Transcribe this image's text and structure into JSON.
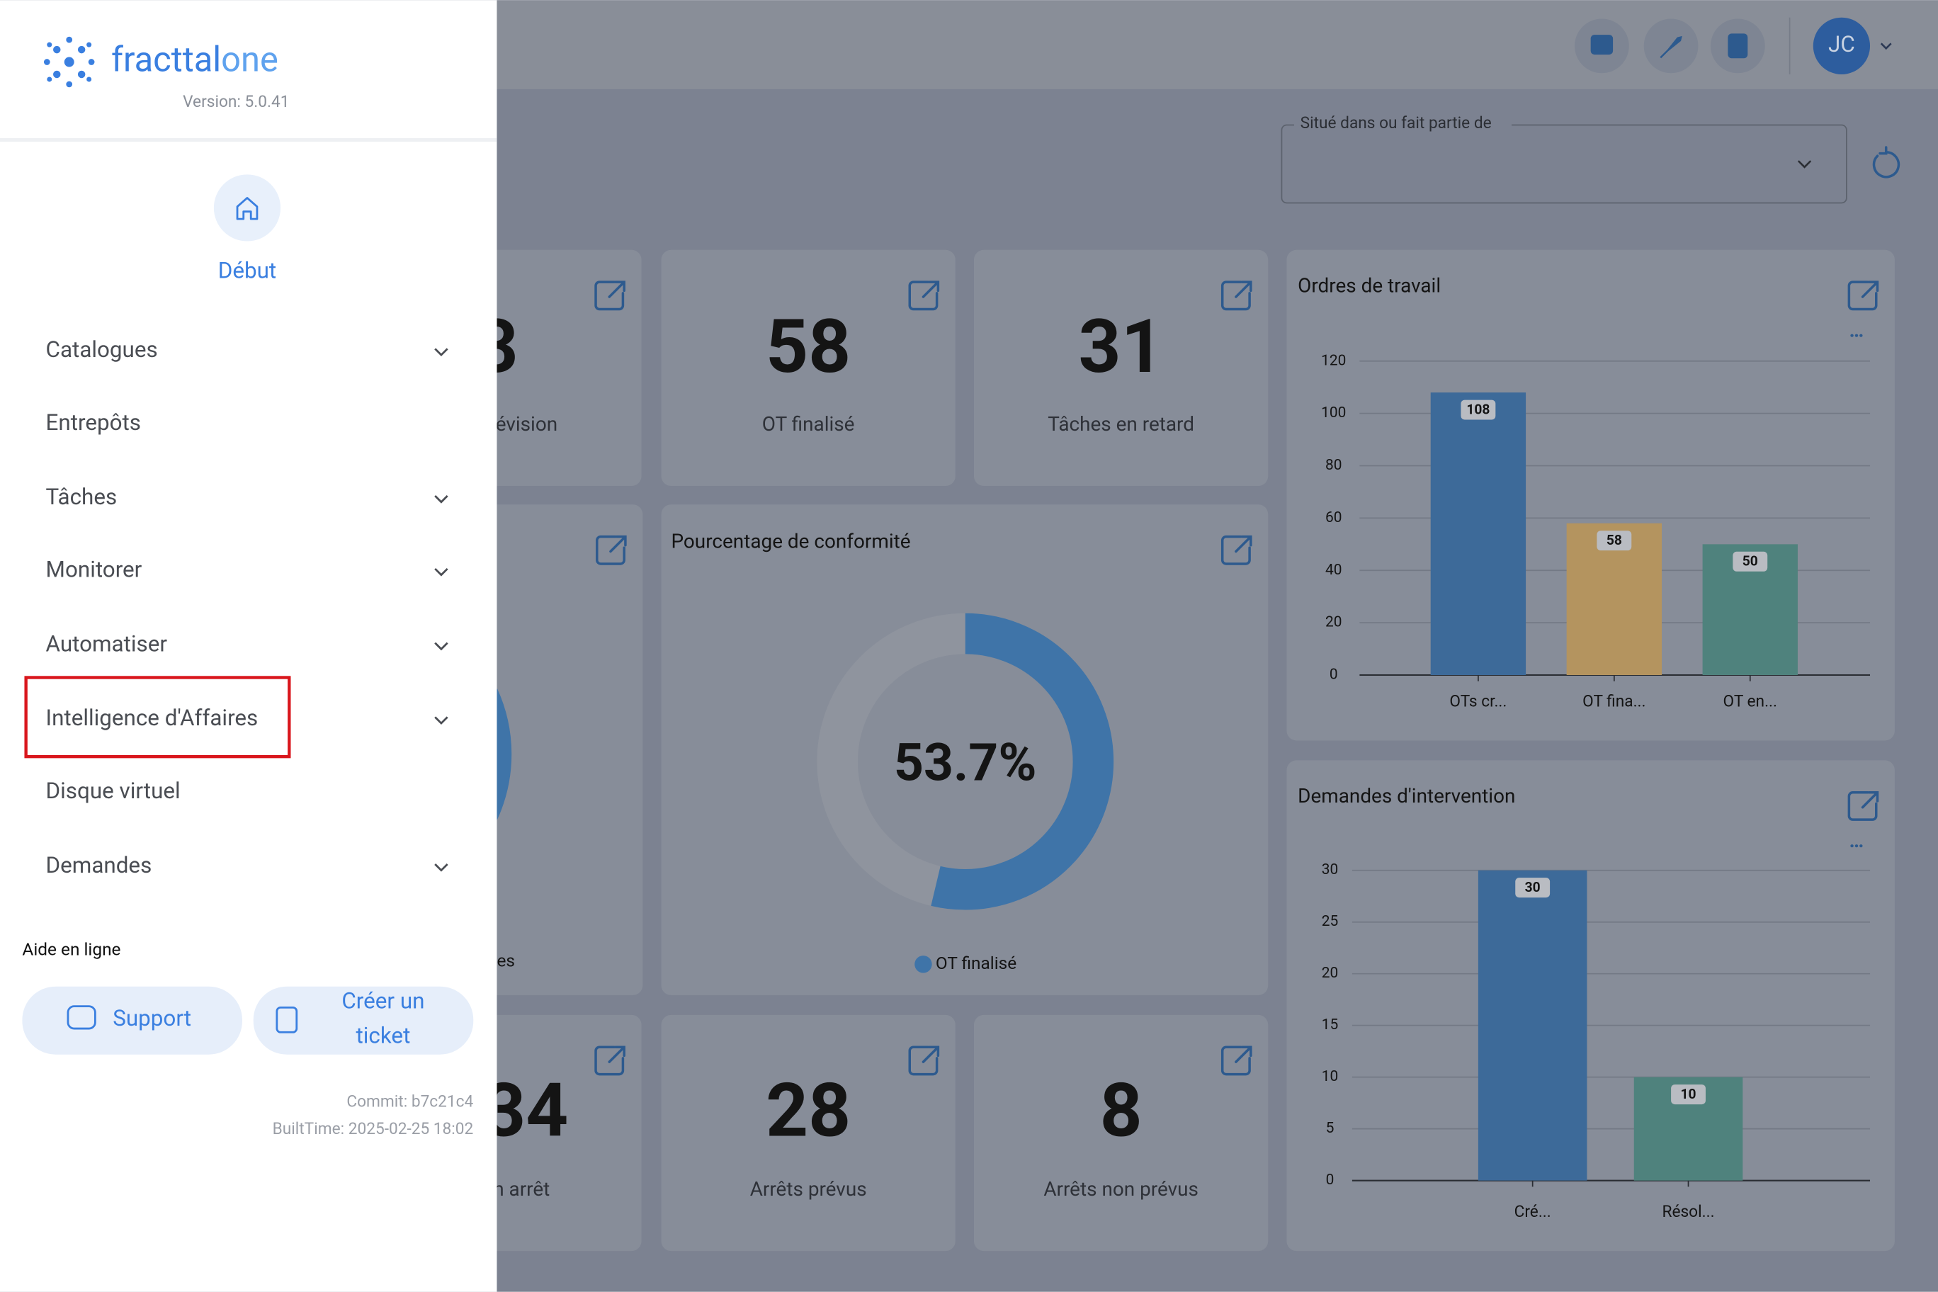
{
  "sidebar": {
    "brand": [
      "fracttal",
      "one"
    ],
    "version": "Version: 5.0.41",
    "home": "Début",
    "menu": [
      {
        "label": "Catalogues",
        "expandable": true
      },
      {
        "label": "Entrepôts",
        "expandable": false
      },
      {
        "label": "Tâches",
        "expandable": true
      },
      {
        "label": "Monitorer",
        "expandable": true
      },
      {
        "label": "Automatiser",
        "expandable": true
      },
      {
        "label": "Intelligence d'Affaires",
        "expandable": true,
        "highlighted": true
      },
      {
        "label": "Disque virtuel",
        "expandable": false
      },
      {
        "label": "Demandes",
        "expandable": true
      }
    ],
    "help_title": "Aide en ligne",
    "support": "Support",
    "ticket": [
      "Créer un",
      "ticket"
    ],
    "commit": "Commit: b7c21c4",
    "built": "BuiltTime: 2025-02-25 18:02"
  },
  "header": {
    "avatar": "JC"
  },
  "filter": {
    "label": "Situé dans ou fait partie de"
  },
  "kpi_cards": [
    {
      "value": "3",
      "label": "évision"
    },
    {
      "value": "58",
      "label": "OT finalisé"
    },
    {
      "value": "31",
      "label": "Tâches en retard"
    },
    {
      "value": "34",
      "label": "n arrêt"
    },
    {
      "value": "28",
      "label": "Arrêts prévus"
    },
    {
      "value": "8",
      "label": "Arrêts non prévus"
    }
  ],
  "partial_legend": "es",
  "chart_data": [
    {
      "type": "bar",
      "title": "Ordres de travail",
      "categories": [
        "OTs cr...",
        "OT fina...",
        "OT en..."
      ],
      "values": [
        108,
        58,
        50
      ],
      "colors": [
        "#3d6a99",
        "#b4945f",
        "#4f827d"
      ],
      "ylim": [
        0,
        120
      ],
      "yticks": [
        0,
        20,
        40,
        60,
        80,
        100,
        120
      ],
      "grid": true
    },
    {
      "type": "donut",
      "title": "Pourcentage de conformité",
      "values": [
        53.7
      ],
      "value_labels": [
        "53.7%"
      ],
      "color": "#3f74a8",
      "legend": [
        "OT finalisé"
      ]
    },
    {
      "type": "bar",
      "title": "Demandes d'intervention",
      "categories": [
        "Cré...",
        "Résol..."
      ],
      "values": [
        30,
        10
      ],
      "colors": [
        "#3d6a99",
        "#4f827d"
      ],
      "ylim": [
        0,
        30
      ],
      "yticks": [
        0,
        5,
        10,
        15,
        20,
        25,
        30
      ],
      "grid": true
    }
  ]
}
